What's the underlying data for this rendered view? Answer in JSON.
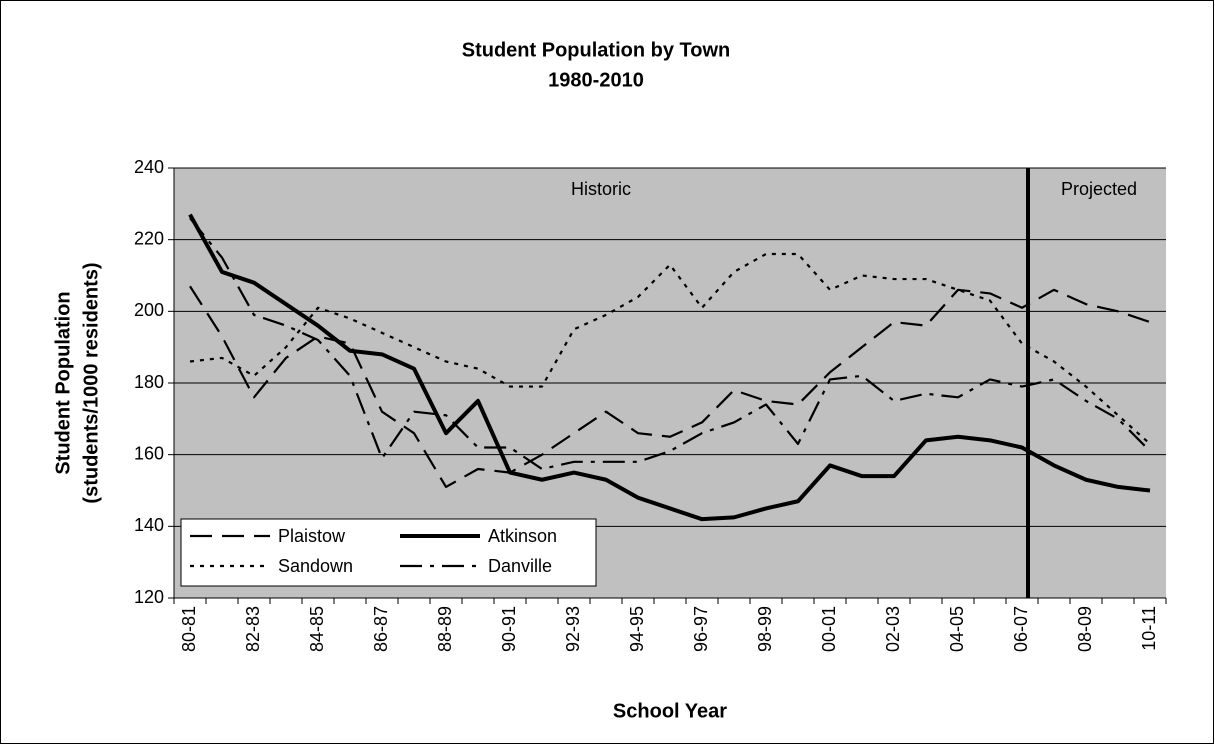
{
  "chart_data": {
    "type": "line",
    "title": "Student Population by Town",
    "subtitle": "1980-2010",
    "ylabel": [
      "Student Population",
      "(students/1000 residents)"
    ],
    "xlabel": "School Year",
    "categories": [
      "80-81",
      null,
      "82-83",
      null,
      "84-85",
      null,
      "86-87",
      null,
      "88-89",
      null,
      "90-91",
      null,
      "92-93",
      null,
      "94-95",
      null,
      "96-97",
      null,
      "98-99",
      null,
      "00-01",
      null,
      "02-03",
      null,
      "04-05",
      null,
      "06-07",
      null,
      "08-09",
      null,
      "10-11"
    ],
    "series": [
      {
        "name": "Plaistow",
        "color": "#000000",
        "style": "dash",
        "values": [
          207,
          193,
          176,
          187,
          193,
          191,
          172,
          166,
          151,
          156,
          155,
          160,
          166,
          172,
          166,
          165,
          169,
          178,
          175,
          174,
          183,
          190,
          197,
          196,
          206,
          205,
          201,
          206,
          202,
          200,
          197
        ]
      },
      {
        "name": "Atkinson",
        "color": "#000000",
        "style": "solid",
        "values": [
          227,
          211,
          208,
          202,
          196,
          189,
          188,
          184,
          166,
          175,
          155,
          153,
          155,
          153,
          148,
          145,
          142,
          142.5,
          145,
          147,
          157,
          154,
          154,
          164,
          165,
          164,
          162,
          157,
          153,
          151,
          150
        ]
      },
      {
        "name": "Sandown",
        "color": "#000000",
        "style": "dot",
        "values": [
          186,
          187,
          182,
          190,
          201,
          198,
          194,
          190,
          186,
          184,
          179,
          179,
          195,
          199,
          204,
          213,
          201,
          211,
          216,
          216,
          206,
          210,
          209,
          209,
          206,
          203,
          191,
          186,
          179,
          171,
          163
        ]
      },
      {
        "name": "Danville",
        "color": "#000000",
        "style": "dashdot",
        "values": [
          226,
          215,
          199,
          196,
          192,
          182,
          159,
          172,
          171,
          162,
          162,
          156,
          158,
          158,
          158,
          161,
          166,
          169,
          174,
          163,
          181,
          182,
          175,
          177,
          176,
          181,
          179,
          181,
          175,
          170,
          161
        ]
      }
    ],
    "annotations": [
      "Historic",
      "Projected"
    ],
    "divider": "06-07",
    "ylim": [
      120,
      240
    ],
    "yticks": [
      120,
      140,
      160,
      180,
      200,
      220,
      240
    ],
    "grid": true,
    "legend": "lower left",
    "background": "#c0c0c0"
  }
}
